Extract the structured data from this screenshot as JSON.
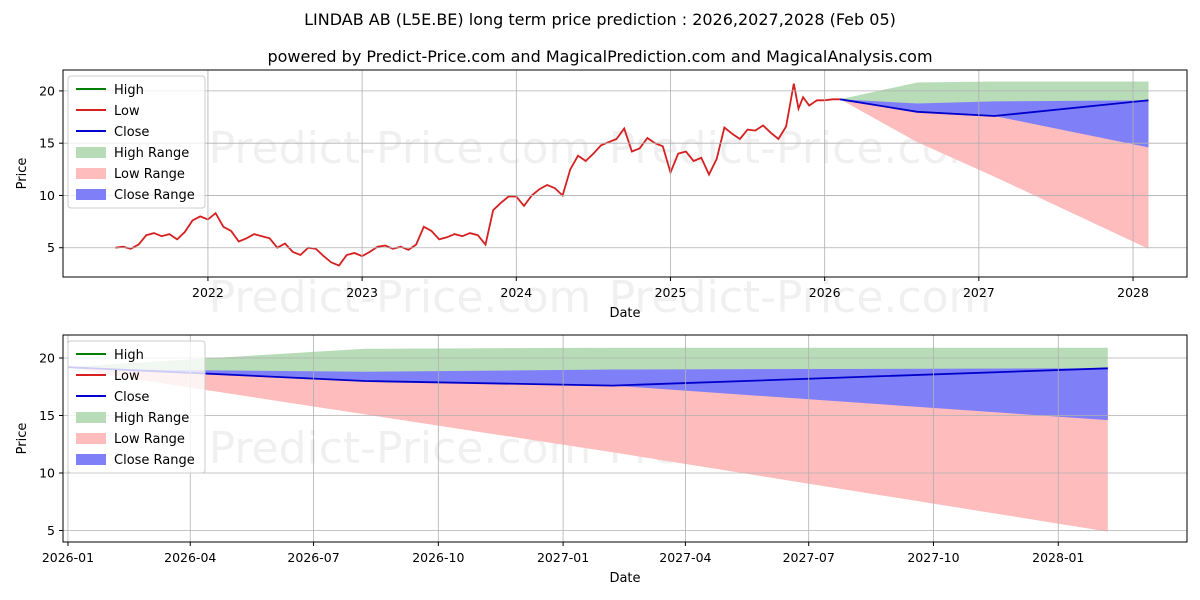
{
  "title": "LINDAB AB (L5E.BE) long term price prediction : 2026,2027,2028 (Feb 05)",
  "subtitle": "powered by Predict-Price.com and MagicalPrediction.com and MagicalAnalysis.com",
  "watermark": "Predict-Price.com",
  "colors": {
    "high": "#008000",
    "low": "#d62020",
    "close": "#0000cc",
    "high_range": "#b7dcb7",
    "low_range": "#ffbcbc",
    "close_range": "#7f7ff8",
    "grid": "#b0b0b0"
  },
  "legend": {
    "position": "upper-left",
    "items": [
      {
        "label": "High",
        "kind": "line",
        "color_key": "high"
      },
      {
        "label": "Low",
        "kind": "line",
        "color_key": "low"
      },
      {
        "label": "Close",
        "kind": "line",
        "color_key": "close"
      },
      {
        "label": "High Range",
        "kind": "patch",
        "color_key": "high_range"
      },
      {
        "label": "Low Range",
        "kind": "patch",
        "color_key": "low_range"
      },
      {
        "label": "Close Range",
        "kind": "patch",
        "color_key": "close_range"
      }
    ]
  },
  "chart_data": [
    {
      "type": "line",
      "name": "long-term",
      "xlabel": "Date",
      "ylabel": "Price",
      "xlim": [
        2021.06,
        2028.35
      ],
      "ylim": [
        2.2,
        22.0
      ],
      "grid": true,
      "x_ticks": [
        {
          "label": "2022",
          "value": 2022
        },
        {
          "label": "2023",
          "value": 2023
        },
        {
          "label": "2024",
          "value": 2024
        },
        {
          "label": "2025",
          "value": 2025
        },
        {
          "label": "2026",
          "value": 2026
        },
        {
          "label": "2027",
          "value": 2027
        },
        {
          "label": "2028",
          "value": 2028
        }
      ],
      "y_ticks": [
        {
          "label": "5",
          "value": 5
        },
        {
          "label": "10",
          "value": 10
        },
        {
          "label": "15",
          "value": 15
        },
        {
          "label": "20",
          "value": 20
        }
      ],
      "history": {
        "series": "Low",
        "x": [
          2021.4,
          2021.45,
          2021.5,
          2021.55,
          2021.6,
          2021.65,
          2021.7,
          2021.75,
          2021.8,
          2021.85,
          2021.9,
          2021.95,
          2022.0,
          2022.05,
          2022.1,
          2022.15,
          2022.2,
          2022.25,
          2022.3,
          2022.35,
          2022.4,
          2022.45,
          2022.5,
          2022.55,
          2022.6,
          2022.65,
          2022.7,
          2022.75,
          2022.8,
          2022.85,
          2022.9,
          2022.95,
          2023.0,
          2023.05,
          2023.1,
          2023.15,
          2023.2,
          2023.25,
          2023.3,
          2023.35,
          2023.4,
          2023.45,
          2023.5,
          2023.55,
          2023.6,
          2023.65,
          2023.7,
          2023.75,
          2023.8,
          2023.85,
          2023.9,
          2023.95,
          2024.0,
          2024.05,
          2024.1,
          2024.15,
          2024.2,
          2024.25,
          2024.3,
          2024.35,
          2024.4,
          2024.45,
          2024.5,
          2024.55,
          2024.6,
          2024.65,
          2024.7,
          2024.75,
          2024.8,
          2024.85,
          2024.9,
          2024.95,
          2025.0,
          2025.05,
          2025.1,
          2025.15,
          2025.2,
          2025.25,
          2025.3,
          2025.35,
          2025.4,
          2025.45,
          2025.5,
          2025.55,
          2025.6,
          2025.65,
          2025.7,
          2025.75,
          2025.8,
          2025.83,
          2025.86,
          2025.9,
          2025.95,
          2026.0,
          2026.05,
          2026.1
        ],
        "values": [
          5.0,
          5.1,
          4.9,
          5.3,
          6.2,
          6.4,
          6.1,
          6.3,
          5.8,
          6.5,
          7.6,
          8.0,
          7.7,
          8.3,
          7.0,
          6.6,
          5.6,
          5.9,
          6.3,
          6.1,
          5.9,
          5.0,
          5.4,
          4.6,
          4.3,
          5.0,
          4.9,
          4.2,
          3.6,
          3.3,
          4.3,
          4.5,
          4.2,
          4.6,
          5.1,
          5.2,
          4.9,
          5.1,
          4.8,
          5.3,
          7.0,
          6.6,
          5.8,
          6.0,
          6.3,
          6.1,
          6.4,
          6.2,
          5.3,
          8.6,
          9.3,
          9.9,
          9.9,
          9.0,
          10.0,
          10.6,
          11.0,
          10.7,
          10.0,
          12.5,
          13.8,
          13.3,
          14.0,
          14.8,
          15.1,
          15.4,
          16.4,
          14.2,
          14.5,
          15.5,
          15.0,
          14.7,
          12.2,
          14.0,
          14.2,
          13.3,
          13.6,
          12.0,
          13.5,
          16.5,
          15.9,
          15.4,
          16.3,
          16.2,
          16.7,
          16.0,
          15.4,
          16.6,
          20.7,
          18.3,
          19.4,
          18.6,
          19.1,
          19.1,
          19.2,
          19.2
        ]
      },
      "forecast": {
        "x": [
          2026.1,
          2026.6,
          2027.1,
          2028.1
        ],
        "close": [
          19.2,
          18.0,
          17.6,
          19.1
        ],
        "high_upper": [
          19.2,
          20.8,
          20.9,
          20.9
        ],
        "low_lower": [
          19.2,
          15.1,
          11.8,
          4.9
        ],
        "close_upper": [
          19.2,
          18.8,
          19.0,
          19.1
        ],
        "close_lower": [
          19.2,
          18.0,
          17.6,
          14.6
        ]
      }
    },
    {
      "type": "line",
      "name": "forecast-zoom",
      "xlabel": "Date",
      "ylabel": "Price",
      "xlim": [
        2025.99,
        2028.26
      ],
      "ylim": [
        4.0,
        22.0
      ],
      "grid": true,
      "x_ticks": [
        {
          "label": "2026-01",
          "value": 2026.0
        },
        {
          "label": "2026-04",
          "value": 2026.247
        },
        {
          "label": "2026-07",
          "value": 2026.496
        },
        {
          "label": "2026-10",
          "value": 2026.748
        },
        {
          "label": "2027-01",
          "value": 2027.0
        },
        {
          "label": "2027-04",
          "value": 2027.247
        },
        {
          "label": "2027-07",
          "value": 2027.496
        },
        {
          "label": "2027-10",
          "value": 2027.748
        },
        {
          "label": "2028-01",
          "value": 2028.0
        }
      ],
      "y_ticks": [
        {
          "label": "5",
          "value": 5
        },
        {
          "label": "10",
          "value": 10
        },
        {
          "label": "15",
          "value": 15
        },
        {
          "label": "20",
          "value": 20
        }
      ],
      "forecast": {
        "x": [
          2026.0,
          2026.1,
          2026.6,
          2027.1,
          2028.1
        ],
        "close": [
          19.2,
          19.0,
          18.0,
          17.6,
          19.1
        ],
        "high_upper": [
          19.2,
          19.5,
          20.8,
          20.9,
          20.9
        ],
        "low_lower": [
          19.2,
          18.4,
          15.1,
          11.8,
          4.9
        ],
        "close_upper": [
          19.2,
          19.0,
          18.8,
          19.0,
          19.1
        ],
        "close_lower": [
          19.2,
          19.0,
          18.0,
          17.6,
          14.6
        ]
      }
    }
  ]
}
